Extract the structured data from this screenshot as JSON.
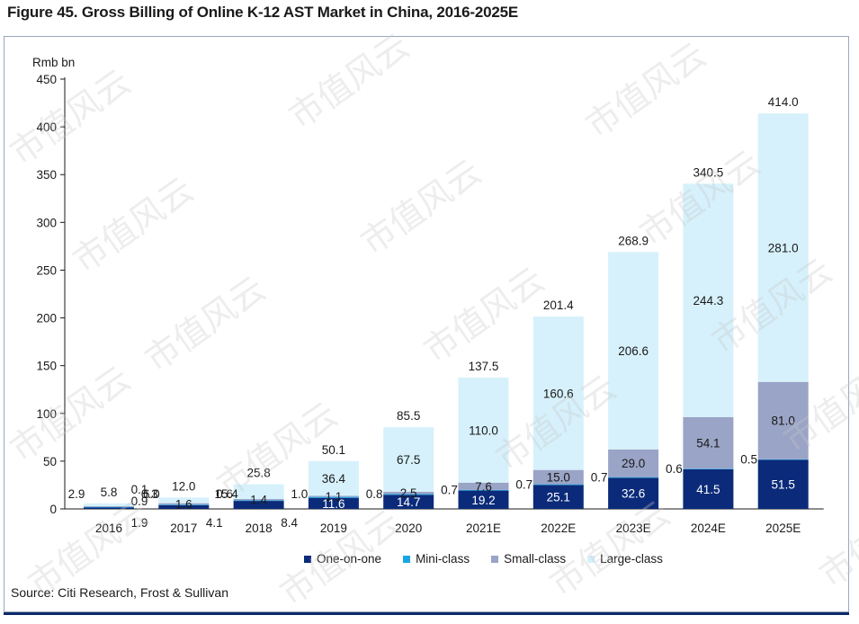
{
  "title": "Figure 45. Gross Billing of Online K-12 AST Market in China, 2016-2025E",
  "source": "Source: Citi Research, Frost & Sullivan",
  "watermark": "市值风云",
  "colors": {
    "one_on_one": "#0b2b7a",
    "mini_class": "#1aa6e6",
    "small_class": "#9aa4c6",
    "large_class": "#d6f1fb",
    "axis": "#1a1a1a"
  },
  "chart_data": {
    "type": "bar",
    "stacked": true,
    "ylabel": "Rmb bn",
    "ylim": [
      0,
      450
    ],
    "yticks": [
      0,
      50,
      100,
      150,
      200,
      250,
      300,
      350,
      400,
      450
    ],
    "grid": false,
    "legend_position": "bottom",
    "categories": [
      "2016",
      "2017",
      "2018",
      "2019",
      "2020",
      "2021E",
      "2022E",
      "2023E",
      "2024E",
      "2025E"
    ],
    "series": [
      {
        "name": "One-on-one",
        "color_key": "one_on_one",
        "values": [
          1.9,
          4.1,
          8.4,
          11.6,
          14.7,
          19.2,
          25.1,
          32.6,
          41.5,
          51.5
        ]
      },
      {
        "name": "Mini-class",
        "color_key": "mini_class",
        "values": [
          0.1,
          0.3,
          0.6,
          1.0,
          0.8,
          0.7,
          0.7,
          0.7,
          0.6,
          0.5
        ]
      },
      {
        "name": "Small-class",
        "color_key": "small_class",
        "values": [
          0.9,
          1.6,
          1.4,
          1.1,
          2.5,
          7.6,
          15.0,
          29.0,
          54.1,
          81.0
        ]
      },
      {
        "name": "Large-class",
        "color_key": "large_class",
        "values": [
          2.9,
          6.0,
          15.4,
          36.4,
          67.5,
          110.0,
          160.6,
          206.6,
          244.3,
          281.0
        ]
      }
    ],
    "totals": [
      5.8,
      12.0,
      25.8,
      50.1,
      85.5,
      137.5,
      201.4,
      268.9,
      340.5,
      414.0
    ]
  }
}
